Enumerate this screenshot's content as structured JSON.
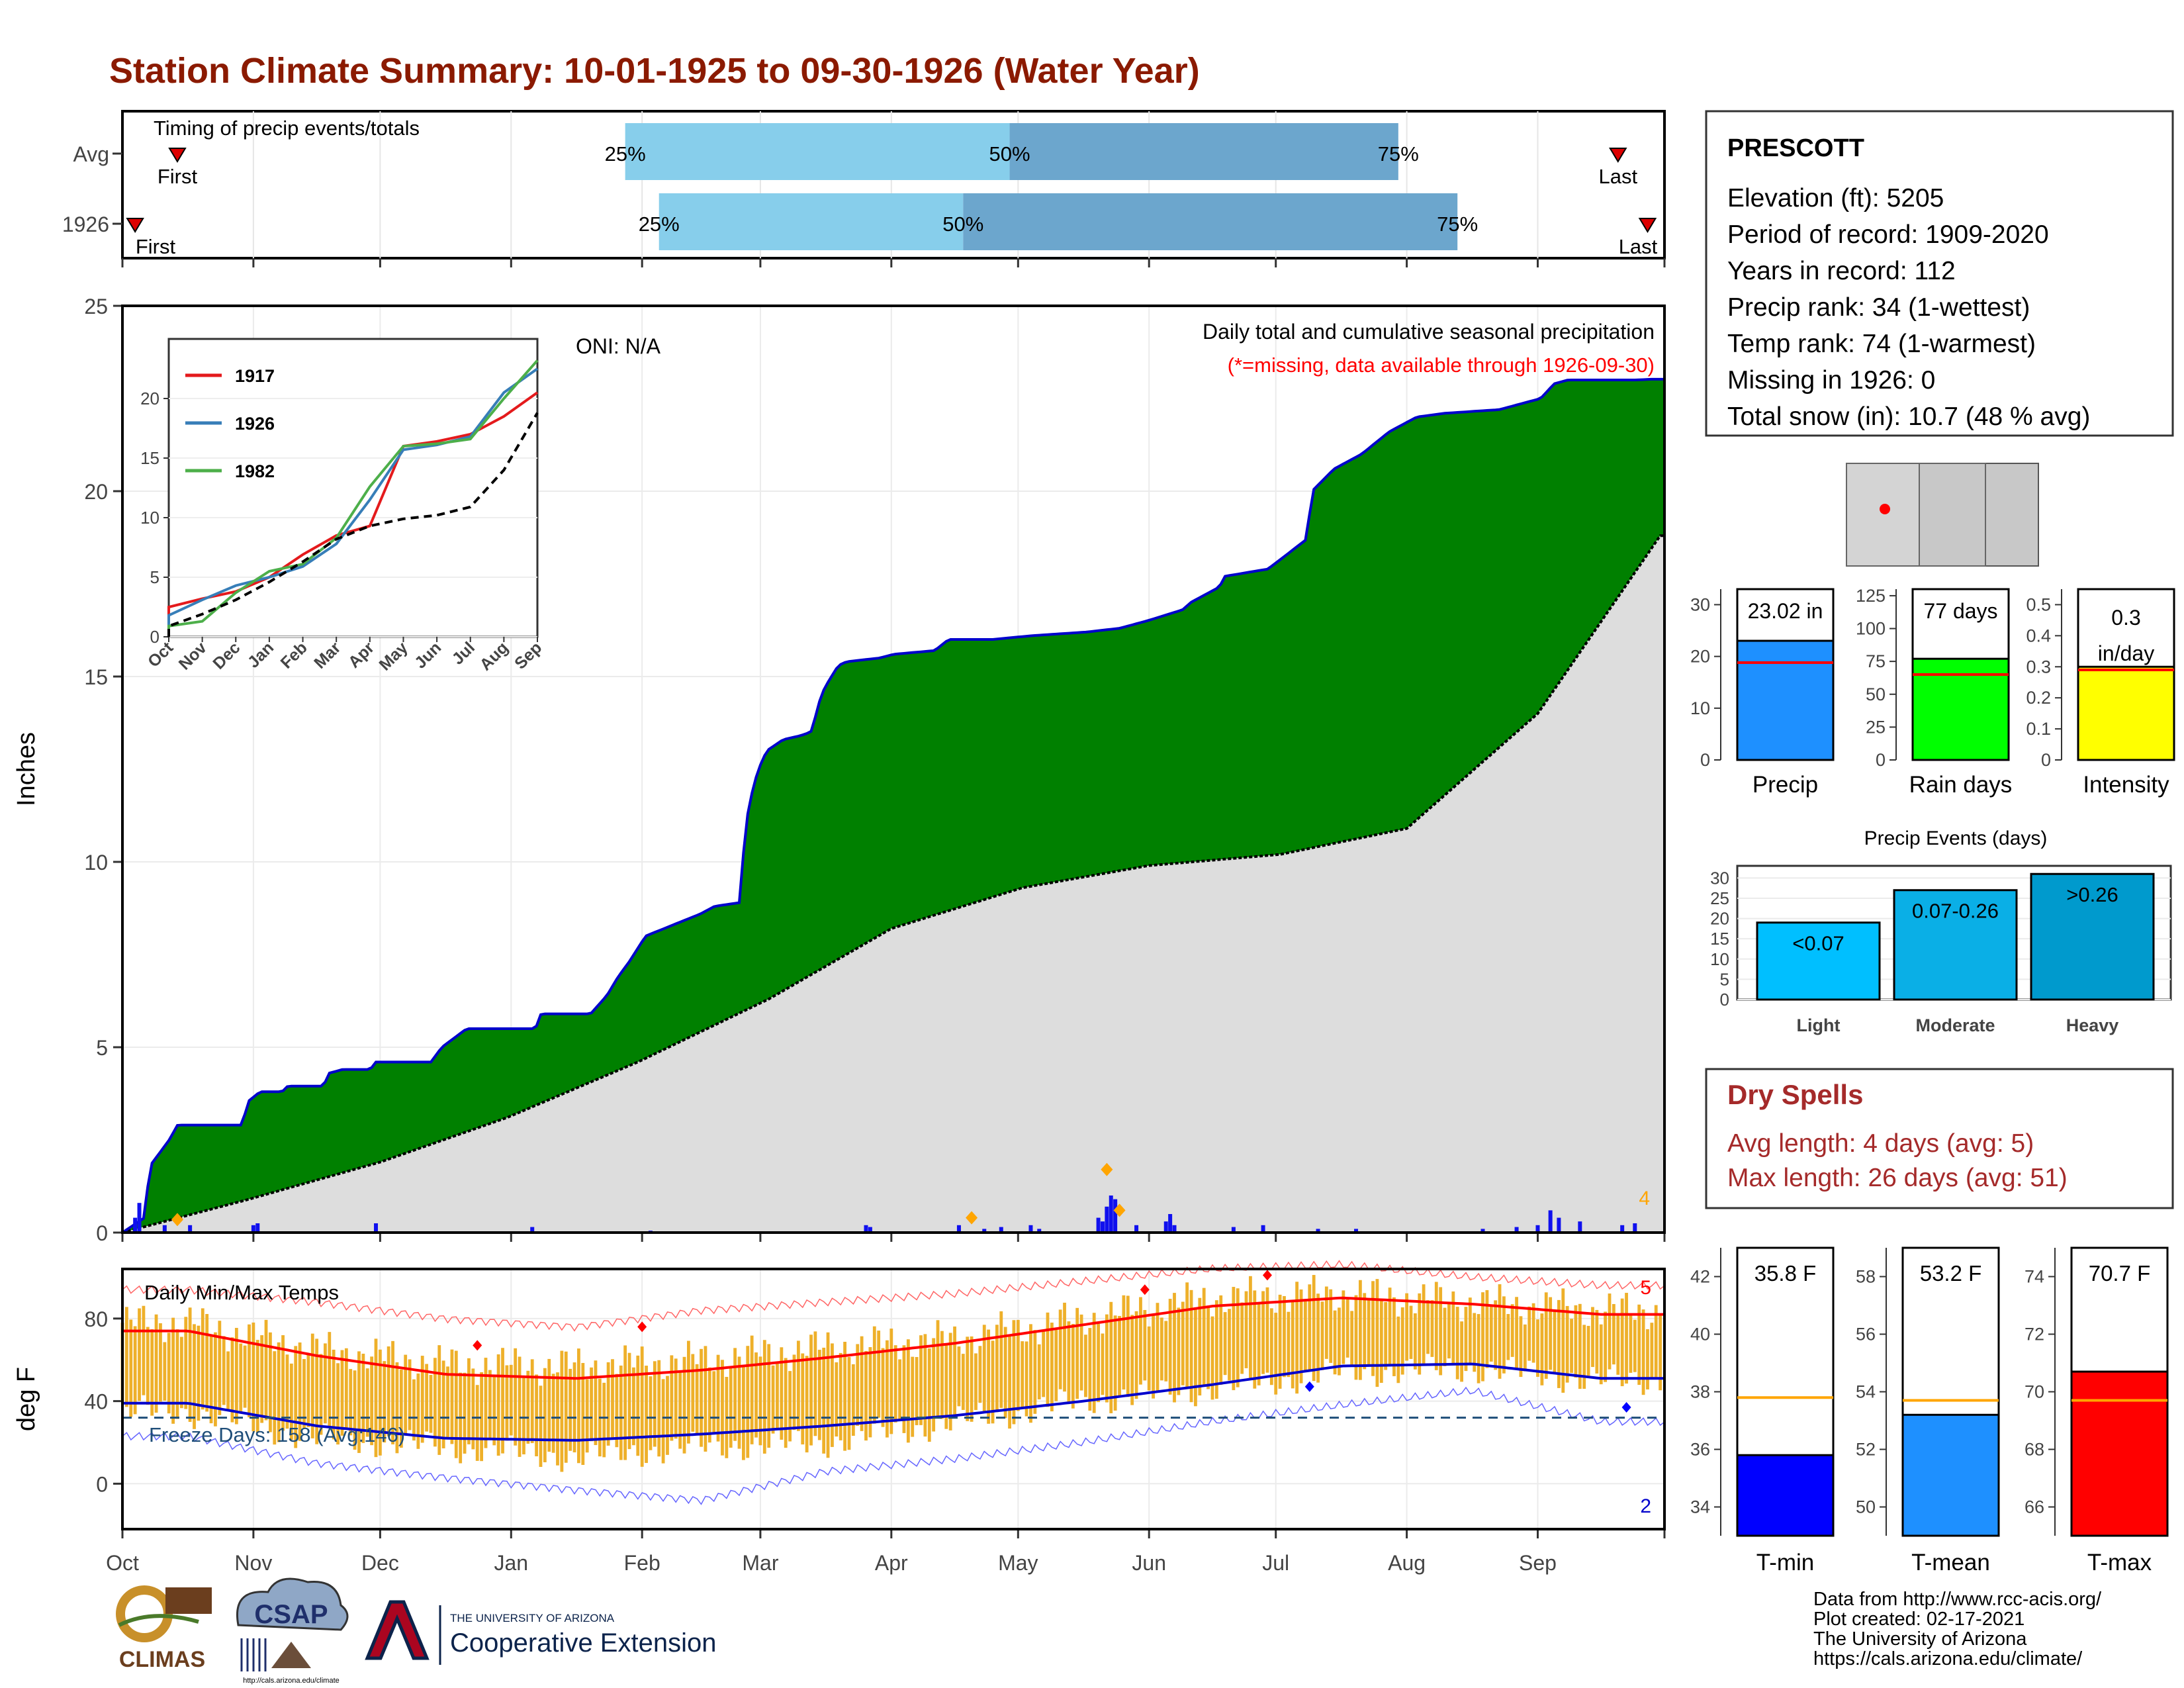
{
  "title": "Station Climate Summary: 10-01-1925 to 09-30-1926 (Water Year)",
  "colors": {
    "title": "#8B1A00",
    "pct_light": "#87CEEB",
    "pct_dark": "#6CA6CD",
    "surplus": "#008000",
    "deficit": "#8B5A10",
    "normal_fill": "#DDDDDD",
    "outline": "#0000CC",
    "precip_bar": "#1010EE",
    "extreme": "#FFA500",
    "temp_bar": "#EEB02A",
    "tmax": "#FF0000",
    "tmin": "#0000CC",
    "dry_spells": "#A52A2A"
  },
  "months": [
    "Oct",
    "Nov",
    "Dec",
    "Jan",
    "Feb",
    "Mar",
    "Apr",
    "May",
    "Jun",
    "Jul",
    "Aug",
    "Sep"
  ],
  "timing": {
    "label": "Timing of precip events/totals",
    "rows": [
      {
        "label": "Avg",
        "first_label": "First",
        "last_label": "Last",
        "p25": "25%",
        "p50": "50%",
        "p75": "75%",
        "first_day": 13,
        "p25_day": 119,
        "p50_day": 210,
        "p75_day": 302,
        "last_day": 354
      },
      {
        "label": "1926",
        "first_label": "First",
        "last_label": "Last",
        "p25": "25%",
        "p50": "50%",
        "p75": "75%",
        "first_day": 3,
        "p25_day": 127,
        "p50_day": 199,
        "p75_day": 316,
        "last_day": 361
      }
    ]
  },
  "main": {
    "ylabel": "Inches",
    "yticks": [
      0,
      5,
      10,
      15,
      20,
      25
    ],
    "ylim": [
      0,
      25
    ],
    "oni": "ONI: N/A",
    "caption": "Daily total and cumulative seasonal precipitation",
    "missing_note": "(*=missing, data available through 1926-09-30)",
    "extreme_count": "4"
  },
  "inset": {
    "yticks": [
      0,
      5,
      10,
      15,
      20
    ],
    "xticks": [
      "Oct",
      "Nov",
      "Dec",
      "Jan",
      "Feb",
      "Mar",
      "Apr",
      "May",
      "Jun",
      "Jul",
      "Aug",
      "Sep"
    ],
    "legend": [
      {
        "name": "1917",
        "color": "#E41A1C"
      },
      {
        "name": "1926",
        "color": "#377EB8"
      },
      {
        "name": "1982",
        "color": "#4DAF4A"
      }
    ]
  },
  "temps": {
    "ylabel": "deg F",
    "label": "Daily Min/Max Temps",
    "yticks": [
      0,
      40,
      80
    ],
    "ylim": [
      -22,
      104
    ],
    "freeze_text": "Freeze Days: 158 (Avg:146)",
    "count_hot": "5",
    "count_cold": "2"
  },
  "station": {
    "name": "PRESCOTT",
    "lines": [
      "Elevation (ft): 5205",
      "Period of record: 1909-2020",
      "Years in record: 112",
      "Precip rank: 34 (1-wettest)",
      "Temp rank: 74 (1-warmest)",
      "Missing in 1926: 0",
      "Total snow (in): 10.7 (48 % avg)"
    ]
  },
  "summary_bars": [
    {
      "name": "Precip",
      "label": "23.02 in",
      "value": 23.02,
      "avg": 18.8,
      "ymax": 33,
      "ticks": [
        0,
        10,
        20,
        30
      ],
      "color": "#1E90FF"
    },
    {
      "name": "Rain days",
      "label": "77 days",
      "value": 77,
      "avg": 65,
      "ymax": 130,
      "ticks": [
        0,
        25,
        50,
        75,
        100,
        125
      ],
      "color": "#00FF00"
    },
    {
      "name": "Intensity",
      "label": "0.3\nin/day",
      "value": 0.3,
      "avg": 0.29,
      "ymax": 0.55,
      "ticks": [
        0.0,
        0.1,
        0.2,
        0.3,
        0.4,
        0.5
      ],
      "color": "#FFFF00"
    }
  ],
  "precip_events": {
    "title": "Precip Events (days)",
    "yticks": [
      0,
      5,
      10,
      15,
      20,
      25,
      30
    ],
    "bars": [
      {
        "name": "Light",
        "label": "<0.07",
        "value": 19,
        "color": "#00BFFF"
      },
      {
        "name": "Moderate",
        "label": "0.07-0.26",
        "value": 27,
        "color": "#0AAFE6"
      },
      {
        "name": "Heavy",
        "label": ">0.26",
        "value": 31,
        "color": "#009ACD"
      }
    ]
  },
  "dry_spells": {
    "title": "Dry Spells",
    "avg_length": "Avg length: 4 days (avg: 5)",
    "max_length": "Max length: 26 days (avg: 51)"
  },
  "temp_bars": [
    {
      "name": "T-min",
      "label": "35.8 F",
      "value": 35.8,
      "avg": 37.8,
      "ylim": [
        33,
        43
      ],
      "ticks": [
        34,
        36,
        38,
        40,
        42
      ],
      "color": "#0000FF"
    },
    {
      "name": "T-mean",
      "label": "53.2 F",
      "value": 53.2,
      "avg": 53.7,
      "ylim": [
        49,
        59
      ],
      "ticks": [
        50,
        52,
        54,
        56,
        58
      ],
      "color": "#1E90FF"
    },
    {
      "name": "T-max",
      "label": "70.7 F",
      "value": 70.7,
      "avg": 69.7,
      "ylim": [
        65,
        75
      ],
      "ticks": [
        66,
        68,
        70,
        72,
        74
      ],
      "color": "#FF0000"
    }
  ],
  "footer": {
    "lines": [
      "Data from http://www.rcc-acis.org/",
      "Plot created: 02-17-2021",
      "The University of Arizona",
      "https://cals.arizona.edu/climate/"
    ],
    "logo_climas": "CLIMAS",
    "logo_csap": "CSAP",
    "csap_url": "http://cals.arizona.edu/climate",
    "ua_small": "THE UNIVERSITY OF ARIZONA",
    "ua_big": "Cooperative Extension"
  },
  "chart_data": {
    "type": "area",
    "title": "Station Climate Summary: 10-01-1925 to 09-30-1926 (Water Year)",
    "ylabel": "Inches",
    "ylim": [
      0,
      25
    ],
    "cumulative_1926": [
      [
        0,
        0
      ],
      [
        8,
        0.4
      ],
      [
        10,
        1.8
      ],
      [
        17,
        2.5
      ],
      [
        20,
        2.9
      ],
      [
        30,
        2.9
      ],
      [
        44,
        2.9
      ],
      [
        45,
        3.5
      ],
      [
        50,
        3.8
      ],
      [
        58,
        3.8
      ],
      [
        60,
        3.95
      ],
      [
        73,
        3.95
      ],
      [
        75,
        4.3
      ],
      [
        80,
        4.4
      ],
      [
        90,
        4.4
      ],
      [
        92,
        4.6
      ],
      [
        112,
        4.6
      ],
      [
        116,
        5.0
      ],
      [
        125,
        5.5
      ],
      [
        150,
        5.5
      ],
      [
        152,
        5.9
      ],
      [
        170,
        5.9
      ],
      [
        176,
        6.4
      ],
      [
        180,
        6.9
      ],
      [
        184,
        7.3
      ],
      [
        190,
        8.0
      ],
      [
        200,
        8.3
      ],
      [
        210,
        8.6
      ],
      [
        215,
        8.8
      ],
      [
        224,
        8.9
      ],
      [
        225,
        9.5
      ],
      [
        226,
        10.9
      ],
      [
        229,
        12.0
      ],
      [
        231,
        12.5
      ],
      [
        234,
        13.0
      ],
      [
        240,
        13.3
      ],
      [
        246,
        13.4
      ],
      [
        250,
        13.5
      ],
      [
        252,
        14.0
      ],
      [
        253,
        14.3
      ],
      [
        255,
        14.7
      ],
      [
        260,
        15.3
      ],
      [
        263,
        15.4
      ],
      [
        275,
        15.5
      ],
      [
        280,
        15.6
      ],
      [
        295,
        15.7
      ],
      [
        300,
        16.0
      ],
      [
        316,
        16.0
      ],
      [
        330,
        16.1
      ],
      [
        350,
        16.2
      ],
      [
        362,
        16.3
      ],
      [
        367,
        16.4
      ],
      [
        372,
        16.5
      ],
      [
        385,
        16.8
      ],
      [
        388,
        17.0
      ],
      [
        398,
        17.4
      ],
      [
        399,
        17.5
      ],
      [
        400,
        17.7
      ],
      [
        416,
        17.9
      ],
      [
        430,
        18.7
      ],
      [
        431,
        19.3
      ],
      [
        432,
        20.0
      ],
      [
        440,
        20.6
      ],
      [
        450,
        21.0
      ],
      [
        460,
        21.6
      ],
      [
        470,
        22.0
      ],
      [
        480,
        22.1
      ],
      [
        500,
        22.2
      ],
      [
        515,
        22.5
      ],
      [
        520,
        22.9
      ],
      [
        525,
        23.0
      ],
      [
        550,
        23.0
      ],
      [
        555,
        23.02
      ],
      [
        560,
        23.02
      ]
    ],
    "normal_cumulative": [
      [
        0,
        0
      ],
      [
        30,
        0.9
      ],
      [
        61,
        1.9
      ],
      [
        91,
        3.1
      ],
      [
        122,
        4.6
      ],
      [
        153,
        6.3
      ],
      [
        182,
        8.2
      ],
      [
        213,
        9.3
      ],
      [
        243,
        9.9
      ],
      [
        274,
        10.2
      ],
      [
        304,
        10.9
      ],
      [
        335,
        14.0
      ],
      [
        364,
        18.8
      ]
    ],
    "daily_precip_1926_peaks": [
      [
        3,
        0.4
      ],
      [
        4,
        0.8
      ],
      [
        10,
        0.2
      ],
      [
        16,
        0.2
      ],
      [
        31,
        0.2
      ],
      [
        32,
        0.25
      ],
      [
        60,
        0.25
      ],
      [
        97,
        0.15
      ],
      [
        125,
        0.05
      ],
      [
        176,
        0.2
      ],
      [
        177,
        0.15
      ],
      [
        198,
        0.2
      ],
      [
        204,
        0.1
      ],
      [
        208,
        0.15
      ],
      [
        215,
        0.2
      ],
      [
        217,
        0.1
      ],
      [
        231,
        0.4
      ],
      [
        232,
        0.3
      ],
      [
        233,
        0.7
      ],
      [
        234,
        1.0
      ],
      [
        235,
        0.9
      ],
      [
        240,
        0.2
      ],
      [
        247,
        0.3
      ],
      [
        248,
        0.5
      ],
      [
        249,
        0.2
      ],
      [
        263,
        0.15
      ],
      [
        270,
        0.2
      ],
      [
        283,
        0.1
      ],
      [
        292,
        0.1
      ],
      [
        322,
        0.1
      ],
      [
        330,
        0.15
      ],
      [
        335,
        0.2
      ],
      [
        338,
        0.6
      ],
      [
        340,
        0.4
      ],
      [
        345,
        0.3
      ],
      [
        355,
        0.2
      ],
      [
        358,
        0.25
      ]
    ],
    "inset": {
      "type": "line",
      "x": [
        "Oct",
        "Nov",
        "Dec",
        "Jan",
        "Feb",
        "Mar",
        "Apr",
        "May",
        "Jun",
        "Jul",
        "Aug",
        "Sep"
      ],
      "series": [
        {
          "name": "1917",
          "values": [
            2.5,
            3.2,
            3.8,
            5.0,
            6.9,
            8.5,
            9.3,
            16.0,
            16.4,
            17.0,
            18.5,
            20.5
          ]
        },
        {
          "name": "1926",
          "values": [
            1.8,
            3.1,
            4.3,
            5.0,
            5.9,
            7.8,
            11.5,
            15.7,
            16.1,
            16.8,
            20.5,
            22.5
          ]
        },
        {
          "name": "1982",
          "values": [
            0.9,
            1.3,
            3.7,
            5.5,
            6.1,
            8.3,
            12.6,
            16.0,
            16.2,
            16.6,
            20.0,
            23.2
          ]
        },
        {
          "name": "",
          "values": [
            0.9,
            1.9,
            3.1,
            4.6,
            6.3,
            8.2,
            9.3,
            9.9,
            10.2,
            10.9,
            14.0,
            18.8
          ]
        }
      ]
    },
    "temperatures": {
      "type": "line",
      "ylabel": "deg F",
      "normal_max_by_month": [
        74,
        62,
        53,
        51,
        55,
        61,
        68,
        77,
        86,
        90,
        87,
        82
      ],
      "normal_min_by_month": [
        39,
        28,
        22,
        21,
        24,
        28,
        33,
        40,
        48,
        57,
        58,
        51
      ],
      "extreme_max_by_month": [
        94,
        88,
        80,
        76,
        84,
        88,
        92,
        98,
        104,
        106,
        100,
        96
      ],
      "extreme_min_by_month": [
        23,
        10,
        3,
        -3,
        -8,
        6,
        12,
        20,
        30,
        38,
        45,
        30
      ],
      "daily_max_1926_by_month": [
        78,
        65,
        58,
        57,
        60,
        66,
        70,
        80,
        90,
        92,
        88,
        84
      ],
      "daily_min_1926_by_month": [
        35,
        22,
        18,
        13,
        18,
        20,
        30,
        40,
        46,
        54,
        56,
        50
      ],
      "freeze_line": 32
    }
  }
}
